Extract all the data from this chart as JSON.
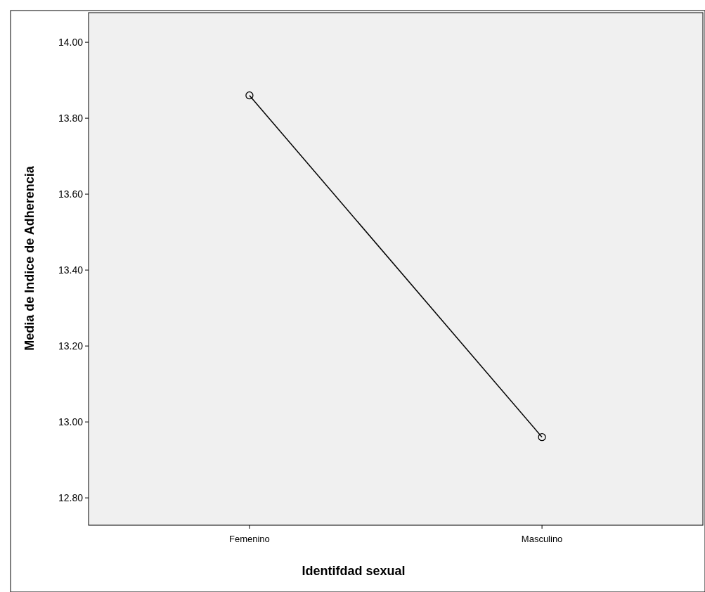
{
  "chart_data": {
    "type": "line",
    "xlabel": "Identifdad sexual",
    "ylabel": "Media de Indice de Adherencia",
    "categories": [
      "Femenino",
      "Masculino"
    ],
    "series": [
      {
        "color": "#000000",
        "values": [
          13.86,
          12.96
        ]
      }
    ],
    "ylim": [
      12.728,
      14.078
    ],
    "yticks": [
      {
        "value": 12.8,
        "label": "12.80"
      },
      {
        "value": 13,
        "label": "13.00"
      },
      {
        "value": 13.2,
        "label": "13.20"
      },
      {
        "value": 13.4,
        "label": "13.40"
      },
      {
        "value": 13.6,
        "label": "13.60"
      },
      {
        "value": 13.8,
        "label": "13.80"
      },
      {
        "value": 14,
        "label": "14.00"
      }
    ],
    "marker": "circle",
    "line_style": "solid",
    "grid": false
  }
}
